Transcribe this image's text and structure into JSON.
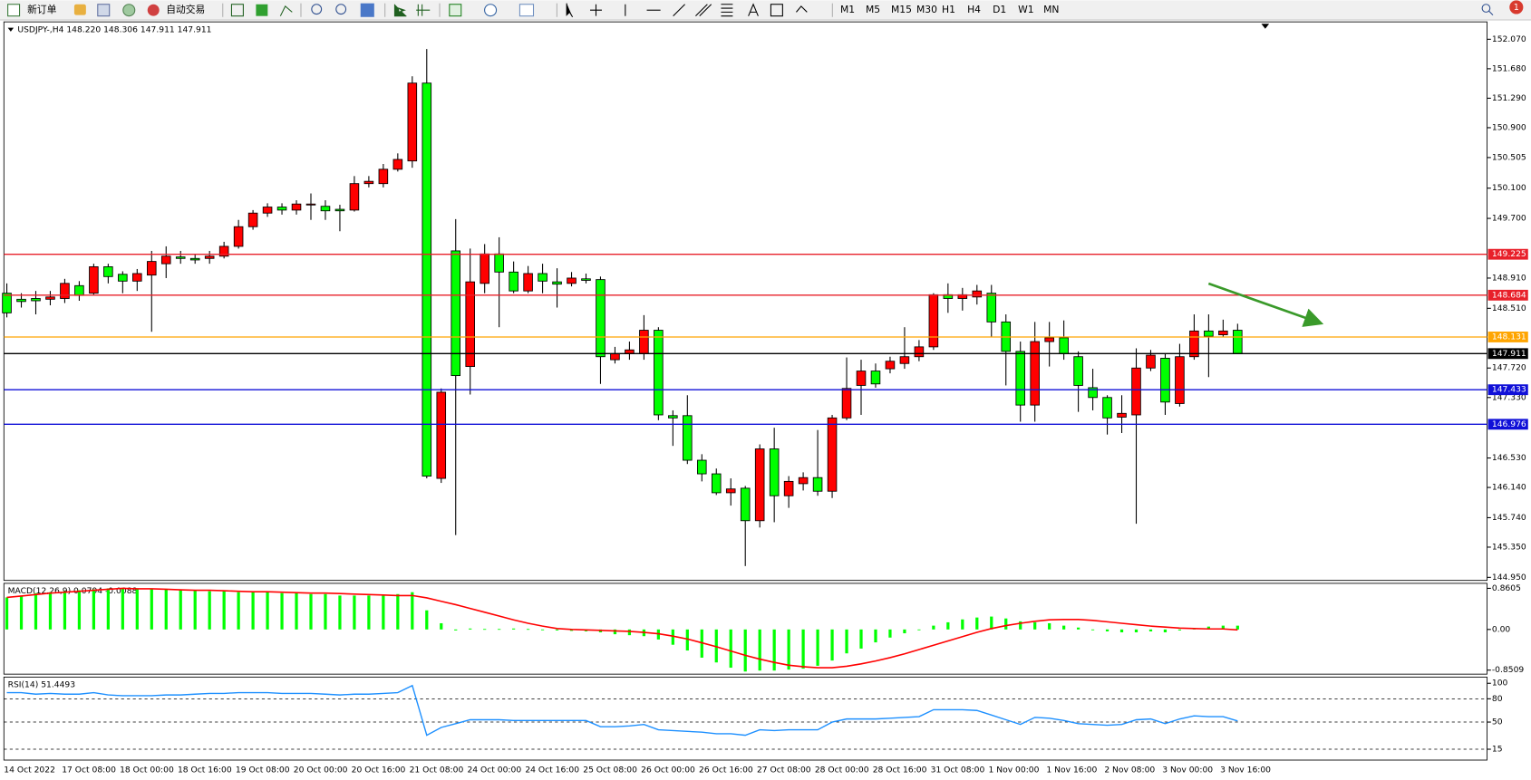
{
  "toolbar": {
    "new_order": "新订单",
    "auto_trade": "自动交易",
    "timeframes": [
      "M1",
      "M5",
      "M15",
      "M30",
      "H1",
      "H4",
      "D1",
      "W1",
      "MN"
    ],
    "notifications": 1
  },
  "chart_data": [
    {
      "type": "candlestick",
      "title": "USDJPY-,H4  148.220 148.306 147.911 147.911",
      "categories": [
        "14 Oct 2022",
        null,
        null,
        null,
        "17 Oct 08:00",
        null,
        null,
        null,
        "18 Oct 00:00",
        null,
        null,
        null,
        "18 Oct 16:00",
        null,
        null,
        null,
        "19 Oct 08:00",
        null,
        null,
        null,
        "20 Oct 00:00",
        null,
        null,
        null,
        "20 Oct 16:00",
        null,
        null,
        null,
        "21 Oct 08:00",
        null,
        null,
        null,
        "24 Oct 00:00",
        null,
        null,
        null,
        "24 Oct 16:00",
        null,
        null,
        null,
        "25 Oct 08:00",
        null,
        null,
        null,
        "26 Oct 00:00",
        null,
        null,
        null,
        "26 Oct 16:00",
        null,
        null,
        null,
        "27 Oct 08:00",
        null,
        null,
        null,
        "28 Oct 00:00",
        null,
        null,
        null,
        "28 Oct 16:00",
        null,
        null,
        null,
        "31 Oct 08:00",
        null,
        null,
        null,
        "1 Nov 00:00",
        null,
        null,
        null,
        "1 Nov 16:00",
        null,
        null,
        null,
        "2 Nov 08:00",
        null,
        null,
        null,
        "3 Nov 00:00",
        null,
        null,
        null,
        "3 Nov 16:00",
        null
      ],
      "open": [
        148.71,
        148.63,
        148.64,
        148.63,
        148.64,
        148.81,
        148.71,
        149.06,
        148.96,
        148.87,
        148.95,
        149.1,
        149.19,
        149.17,
        149.17,
        149.2,
        149.33,
        149.59,
        149.77,
        149.85,
        149.81,
        149.88,
        149.86,
        149.82,
        149.81,
        150.16,
        150.16,
        150.35,
        150.46,
        151.49,
        146.26,
        149.27,
        147.74,
        148.84,
        149.23,
        148.99,
        148.74,
        148.97,
        148.86,
        148.84,
        148.9,
        148.89,
        147.83,
        147.91,
        147.91,
        148.22,
        147.09,
        147.09,
        146.5,
        146.32,
        146.07,
        146.13,
        145.7,
        146.65,
        146.03,
        146.19,
        146.27,
        146.09,
        147.06,
        147.49,
        147.68,
        147.71,
        147.78,
        147.87,
        148.0,
        148.69,
        148.64,
        148.66,
        148.71,
        148.33,
        147.94,
        147.23,
        148.07,
        148.12,
        147.87,
        147.46,
        147.33,
        147.07,
        147.1,
        147.72,
        147.85,
        147.25,
        147.87,
        148.21,
        148.16,
        148.22
      ],
      "high": [
        148.84,
        148.71,
        148.74,
        148.74,
        148.9,
        148.87,
        149.1,
        149.1,
        149.0,
        149.03,
        149.27,
        149.33,
        149.27,
        149.23,
        149.27,
        149.39,
        149.68,
        149.81,
        149.9,
        149.9,
        149.94,
        150.03,
        149.94,
        149.88,
        150.26,
        150.26,
        150.42,
        150.56,
        151.58,
        151.94,
        147.45,
        149.69,
        149.3,
        149.36,
        149.45,
        149.13,
        149.07,
        149.1,
        149.04,
        148.99,
        148.97,
        148.93,
        148.0,
        148.07,
        148.42,
        148.26,
        147.16,
        147.36,
        146.58,
        146.39,
        146.26,
        146.16,
        146.71,
        146.93,
        146.29,
        146.34,
        146.9,
        147.1,
        147.86,
        147.83,
        147.78,
        147.87,
        148.26,
        148.09,
        148.71,
        148.84,
        148.78,
        148.82,
        148.82,
        148.43,
        148.07,
        148.33,
        148.33,
        148.35,
        147.94,
        147.71,
        147.36,
        147.36,
        147.98,
        147.96,
        147.91,
        148.04,
        148.43,
        148.43,
        148.36,
        148.306
      ],
      "low": [
        148.39,
        148.52,
        148.43,
        148.55,
        148.58,
        148.61,
        148.69,
        148.84,
        148.71,
        148.74,
        148.2,
        148.91,
        149.1,
        149.1,
        149.1,
        149.17,
        149.3,
        149.55,
        149.72,
        149.75,
        149.75,
        149.68,
        149.68,
        149.53,
        149.79,
        150.11,
        150.11,
        150.32,
        150.37,
        146.26,
        146.2,
        145.51,
        147.37,
        148.71,
        148.26,
        148.71,
        148.71,
        148.71,
        148.52,
        148.8,
        148.84,
        147.51,
        147.78,
        147.83,
        147.83,
        147.03,
        146.69,
        146.45,
        146.22,
        146.04,
        145.9,
        145.1,
        145.61,
        145.68,
        145.87,
        146.1,
        146.03,
        146.0,
        147.03,
        147.1,
        147.46,
        147.65,
        147.71,
        147.81,
        147.96,
        148.45,
        148.48,
        148.56,
        148.13,
        147.49,
        147.01,
        147.01,
        147.74,
        147.83,
        147.14,
        147.16,
        146.84,
        146.86,
        145.66,
        147.68,
        147.1,
        147.21,
        147.83,
        147.6,
        148.13,
        147.911
      ],
      "close": [
        148.45,
        148.6,
        148.61,
        148.66,
        148.84,
        148.68,
        149.06,
        148.93,
        148.87,
        148.97,
        149.13,
        149.2,
        149.17,
        149.15,
        149.2,
        149.33,
        149.59,
        149.77,
        149.85,
        149.81,
        149.89,
        149.89,
        149.8,
        149.8,
        150.16,
        150.19,
        150.35,
        150.48,
        151.49,
        146.29,
        147.4,
        147.62,
        148.86,
        149.23,
        148.99,
        148.74,
        148.97,
        148.87,
        148.83,
        148.91,
        148.88,
        147.87,
        147.91,
        147.96,
        148.22,
        147.1,
        147.06,
        146.5,
        146.32,
        146.07,
        146.12,
        145.7,
        146.65,
        146.03,
        146.22,
        146.27,
        146.09,
        147.06,
        147.45,
        147.68,
        147.51,
        147.81,
        147.87,
        148.0,
        148.69,
        148.64,
        148.69,
        148.74,
        148.33,
        147.94,
        147.23,
        148.07,
        148.12,
        147.91,
        147.49,
        147.33,
        147.06,
        147.12,
        147.72,
        147.89,
        147.27,
        147.87,
        148.21,
        148.14,
        148.21,
        147.911
      ],
      "up_color": "#ff0000",
      "down_color": "#00ff00",
      "wick_color": "#000000",
      "ylim": [
        144.91,
        152.3
      ],
      "yticks": [
        {
          "value": 152.07,
          "label": "152.070"
        },
        {
          "value": 151.68,
          "label": "151.680"
        },
        {
          "value": 151.29,
          "label": "151.290"
        },
        {
          "value": 150.9,
          "label": "150.900"
        },
        150.505,
        {
          "value": 150.1,
          "label": "150.100"
        },
        {
          "value": 149.7,
          "label": "149.700"
        },
        {
          "value": 148.91,
          "label": "148.910"
        },
        {
          "value": 148.51,
          "label": "148.510"
        },
        {
          "value": 147.72,
          "label": "147.720"
        },
        {
          "value": 147.33,
          "label": "147.330"
        },
        {
          "value": 146.53,
          "label": "146.530"
        },
        {
          "value": 146.14,
          "label": "146.140"
        },
        {
          "value": 145.74,
          "label": "145.740"
        },
        {
          "value": 145.35,
          "label": "145.350"
        },
        {
          "value": 144.95,
          "label": "144.950"
        }
      ],
      "hlines": [
        {
          "value": 149.225,
          "color": "#e8202a"
        },
        {
          "value": 148.684,
          "color": "#e8202a"
        },
        {
          "value": 148.131,
          "color": "#ffa500"
        },
        {
          "value": 147.911,
          "color": "#000000"
        },
        {
          "value": 147.433,
          "color": "#1010d8"
        },
        {
          "value": 146.976,
          "color": "#1010d8"
        }
      ]
    },
    {
      "type": "macd",
      "title": "MACD(12,26,9) 0.0794 -0.0088",
      "values": [
        0.67,
        0.71,
        0.76,
        0.78,
        0.8,
        0.82,
        0.84,
        0.86,
        0.86,
        0.86,
        0.84,
        0.84,
        0.82,
        0.82,
        0.8,
        0.8,
        0.78,
        0.78,
        0.78,
        0.76,
        0.76,
        0.74,
        0.74,
        0.71,
        0.71,
        0.71,
        0.71,
        0.74,
        0.78,
        0.4,
        0.13,
        -0.02,
        0.02,
        0.01,
        0.01,
        0.02,
        0.01,
        -0.01,
        -0.02,
        -0.03,
        -0.04,
        -0.06,
        -0.1,
        -0.12,
        -0.14,
        -0.21,
        -0.32,
        -0.44,
        -0.59,
        -0.69,
        -0.8,
        -0.88,
        -0.86,
        -0.86,
        -0.84,
        -0.82,
        -0.76,
        -0.65,
        -0.5,
        -0.4,
        -0.27,
        -0.17,
        -0.08,
        0.0,
        0.08,
        0.15,
        0.21,
        0.25,
        0.27,
        0.23,
        0.17,
        0.15,
        0.13,
        0.08,
        0.04,
        0.0,
        -0.04,
        -0.06,
        -0.06,
        -0.04,
        -0.06,
        -0.02,
        0.02,
        0.06,
        0.08,
        0.0794
      ],
      "signal": [
        0.67,
        0.7,
        0.73,
        0.76,
        0.78,
        0.8,
        0.82,
        0.84,
        0.86,
        0.85,
        0.85,
        0.84,
        0.83,
        0.82,
        0.82,
        0.81,
        0.8,
        0.79,
        0.79,
        0.78,
        0.77,
        0.76,
        0.76,
        0.75,
        0.74,
        0.73,
        0.72,
        0.71,
        0.71,
        0.66,
        0.59,
        0.52,
        0.44,
        0.36,
        0.28,
        0.2,
        0.13,
        0.07,
        0.02,
        0.0,
        -0.01,
        -0.02,
        -0.03,
        -0.04,
        -0.06,
        -0.09,
        -0.14,
        -0.2,
        -0.28,
        -0.36,
        -0.45,
        -0.54,
        -0.62,
        -0.69,
        -0.75,
        -0.78,
        -0.8,
        -0.8,
        -0.77,
        -0.72,
        -0.66,
        -0.59,
        -0.51,
        -0.42,
        -0.33,
        -0.24,
        -0.15,
        -0.06,
        0.02,
        0.08,
        0.13,
        0.17,
        0.2,
        0.21,
        0.21,
        0.19,
        0.16,
        0.13,
        0.1,
        0.07,
        0.05,
        0.03,
        0.02,
        0.01,
        0.01,
        -0.0088
      ],
      "color": "#00ff00",
      "signal_color": "#ff0000",
      "ylim": [
        -0.935,
        0.965
      ],
      "yticks": [
        0.8605,
        {
          "value": 0,
          "label": "0.00"
        },
        -0.8509
      ]
    },
    {
      "type": "line",
      "title": "RSI(14) 51.4493",
      "values": [
        88,
        88,
        86,
        87,
        86,
        86,
        88,
        85,
        84,
        84,
        84,
        85,
        85,
        86,
        87,
        87,
        88,
        88,
        88,
        87,
        87,
        87,
        86,
        85,
        86,
        86,
        87,
        88,
        97,
        33,
        43,
        48,
        53,
        53,
        53,
        52,
        52,
        52,
        52,
        52,
        52,
        44,
        44,
        45,
        47,
        40,
        39,
        38,
        37,
        35,
        35,
        33,
        40,
        39,
        40,
        40,
        40,
        50,
        54,
        54,
        54,
        55,
        56,
        57,
        66,
        66,
        66,
        65,
        59,
        53,
        47,
        56,
        55,
        52,
        48,
        47,
        46,
        47,
        53,
        54,
        48,
        54,
        58,
        57,
        57,
        51.4493
      ],
      "color": "#1e90ff",
      "ylim": [
        1,
        108
      ],
      "yticks": [
        100,
        80,
        50,
        15
      ],
      "levels": [
        80,
        50,
        15
      ]
    }
  ]
}
